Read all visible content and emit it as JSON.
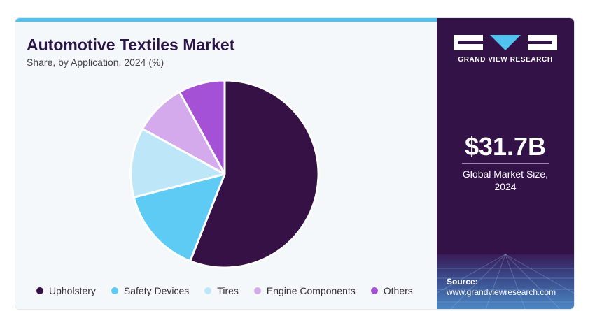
{
  "header": {
    "title": "Automotive Textiles Market",
    "subtitle": "Share, by Application, 2024 (%)"
  },
  "sidebar": {
    "brand": "GRAND VIEW RESEARCH",
    "market_size": "$31.7B",
    "market_size_label": "Global Market Size, 2024",
    "source_label": "Source:",
    "source_url": "www.grandviewresearch.com"
  },
  "colors": {
    "Upholstery": "#351146",
    "Safety Devices": "#5ecbf5",
    "Tires": "#bde7f8",
    "Engine Components": "#d4aaec",
    "Others": "#a451d6"
  },
  "chart_data": {
    "type": "pie",
    "title": "Automotive Textiles Market",
    "subtitle": "Share, by Application, 2024 (%)",
    "legend_position": "bottom",
    "categories": [
      "Upholstery",
      "Safety Devices",
      "Tires",
      "Engine Components",
      "Others"
    ],
    "values": [
      56,
      15,
      12,
      9,
      8
    ]
  }
}
